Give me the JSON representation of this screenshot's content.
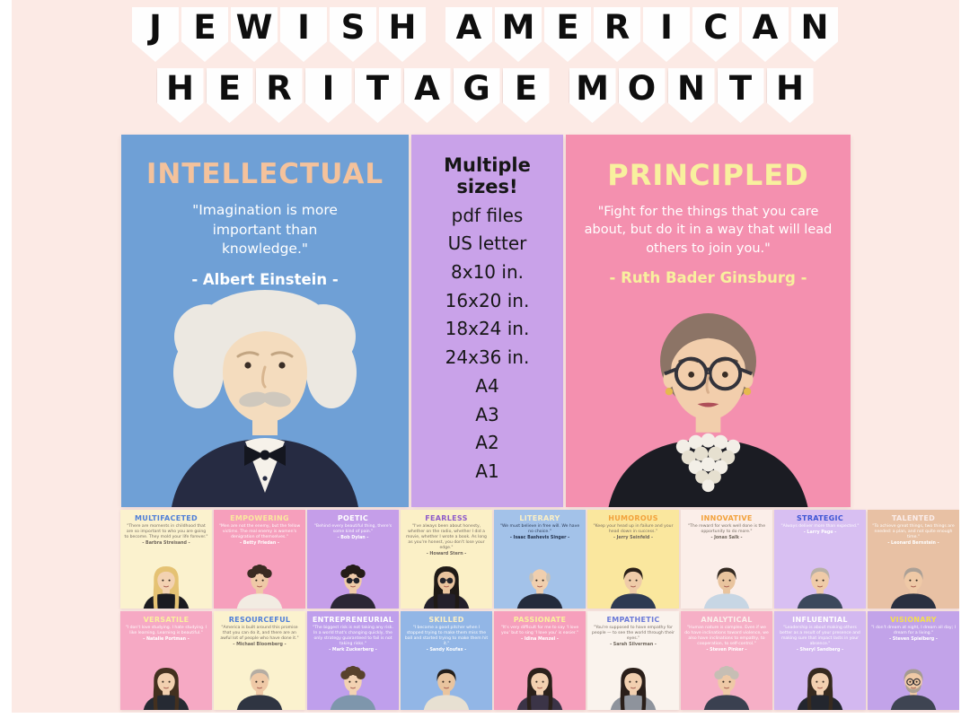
{
  "banner": {
    "line1": "JEWISH AMERICAN",
    "line2": "HERITAGE MONTH"
  },
  "featured": {
    "left": {
      "title": "INTELLECTUAL",
      "quote": "\"Imagination is more important than knowledge.\"",
      "author": "- Albert Einstein -"
    },
    "sizes": {
      "lines": [
        "Multiple sizes!",
        "pdf files",
        "US letter",
        "8x10 in.",
        "16x20 in.",
        "18x24 in.",
        "24x36 in.",
        "A4",
        "A3",
        "A2",
        "A1"
      ]
    },
    "right": {
      "title": "PRINCIPLED",
      "quote": "\"Fight for the things that you care about, but do it in a way that will lead others to join you.\"",
      "author": "- Ruth Bader Ginsburg -"
    }
  },
  "colors": {
    "background": "#FCEAE5",
    "left_poster": "#6FA0D6",
    "sizes_panel": "#C9A2E9",
    "right_poster": "#F490AF",
    "left_title": "#F4C29C",
    "right_title": "#F8F09E",
    "banner_letter": "#0E0E0E"
  },
  "mini_posters": {
    "rows": [
      [
        {
          "title": "MULTIFACETED",
          "title_color": "#4F7FD8",
          "bg": "#FBF2CE",
          "fg": "#6F665C",
          "quote": "\"There are moments in childhood that are so important to who you are going to become. They mold your life forever.\"",
          "name": "- Barbra Streisand -",
          "portrait": {
            "style": "long",
            "hair": "#E5C273",
            "skin": "#F3D2B2",
            "shirt": "#1B1B20"
          }
        },
        {
          "title": "EMPOWERING",
          "title_color": "#FAE89E",
          "bg": "#F69FBC",
          "fg": "#FFFFFF",
          "quote": "\"Men are not the enemy, but the fellow victims. The real enemy is women's denigration of themselves.\"",
          "name": "- Betty Friedan -",
          "portrait": {
            "style": "curly",
            "hair": "#3B2B22",
            "skin": "#EFC9A6",
            "shirt": "#F2ECE2"
          }
        },
        {
          "title": "POETIC",
          "title_color": "#FFFFFF",
          "bg": "#C59EE9",
          "fg": "#FFFFFF",
          "quote": "\"Behind every beautiful thing, there's some kind of pain.\"",
          "name": "- Bob Dylan -",
          "portrait": {
            "style": "curly",
            "hair": "#241C17",
            "skin": "#EFCBA8",
            "shirt": "#2B2735",
            "sunglasses": true
          }
        },
        {
          "title": "FEARLESS",
          "title_color": "#8E5BC9",
          "bg": "#FBF0C6",
          "fg": "#6F665C",
          "quote": "\"I've always been about honesty, whether on the radio, whether I did a movie, whether I wrote a book. As long as you're honest, you don't lose your edge.\"",
          "name": "- Howard Stern -",
          "portrait": {
            "style": "long",
            "hair": "#1F1A16",
            "skin": "#E9C49E",
            "shirt": "#23202B",
            "sunglasses": true
          }
        },
        {
          "title": "LITERARY",
          "title_color": "#FBF0C6",
          "bg": "#A3C2E9",
          "fg": "#23324D",
          "quote": "\"We must believe in free will. We have no choice.\"",
          "name": "- Isaac Bashevis Singer -",
          "portrait": {
            "style": "bald",
            "hair": "#C9C2B7",
            "skin": "#F0CFAE",
            "shirt": "#242B3C"
          }
        },
        {
          "title": "HUMOROUS",
          "title_color": "#F2A23C",
          "bg": "#FAE79E",
          "fg": "#6F665C",
          "quote": "\"Keep your head up in failure and your head down in success.\"",
          "name": "- Jerry Seinfeld -",
          "portrait": {
            "style": "short",
            "hair": "#2A2018",
            "skin": "#EFCBA8",
            "shirt": "#2E3A52"
          }
        },
        {
          "title": "INNOVATIVE",
          "title_color": "#F2A23C",
          "bg": "#FBEEE9",
          "fg": "#6F665C",
          "quote": "\"The reward for work well done is the opportunity to do more.\"",
          "name": "- Jonas Salk -",
          "portrait": {
            "style": "short",
            "hair": "#342A22",
            "skin": "#E9C49E",
            "shirt": "#C7D6E4"
          }
        },
        {
          "title": "STRATEGIC",
          "title_color": "#3D55D4",
          "bg": "#D8BFF2",
          "fg": "#FFFFFF",
          "quote": "\"Always deliver more than expected.\"",
          "name": "- Larry Page -",
          "portrait": {
            "style": "short",
            "hair": "#B9B1A6",
            "skin": "#EFCBA8",
            "shirt": "#3C485C"
          }
        },
        {
          "title": "TALENTED",
          "title_color": "#FBEDEA",
          "bg": "#E8C1A4",
          "fg": "#FFFFFF",
          "quote": "\"To achieve great things, two things are needed: a plan, and not quite enough time.\"",
          "name": "- Leonard Bernstein -",
          "portrait": {
            "style": "short",
            "hair": "#ABA096",
            "skin": "#EFC9A6",
            "shirt": "#2A3040"
          }
        }
      ],
      [
        {
          "title": "VERSATILE",
          "title_color": "#FAF09E",
          "bg": "#F6A9C4",
          "fg": "#FFFFFF",
          "quote": "\"I don't love studying. I hate studying. I like learning. Learning is beautiful.\"",
          "name": "- Natalie Portman -",
          "portrait": {
            "style": "long",
            "hair": "#43301F",
            "skin": "#F2D0B0",
            "shirt": "#262A33"
          }
        },
        {
          "title": "RESOURCEFUL",
          "title_color": "#4F7FD8",
          "bg": "#FBF2CE",
          "fg": "#6F665C",
          "quote": "\"America is built around this promise that you can do it, and there are an awful lot of people who have done it.\"",
          "name": "- Michael Bloomberg -",
          "portrait": {
            "style": "short",
            "hair": "#B5ADA3",
            "skin": "#EFC9A6",
            "shirt": "#2F3542"
          }
        },
        {
          "title": "ENTREPRENEURIAL",
          "title_color": "#FFFFFF",
          "bg": "#BF9FEC",
          "fg": "#FFFFFF",
          "quote": "\"The biggest risk is not taking any risk. In a world that's changing quickly, the only strategy guaranteed to fail is not taking risks.\"",
          "name": "- Mark Zuckerberg -",
          "portrait": {
            "style": "curly",
            "hair": "#58422C",
            "skin": "#F3D2B2",
            "shirt": "#7E96AC"
          }
        },
        {
          "title": "SKILLED",
          "title_color": "#FBF0C6",
          "bg": "#92B6E6",
          "fg": "#FFFFFF",
          "quote": "\"I became a good pitcher when I stopped trying to make them miss the ball and started trying to make them hit it.\"",
          "name": "- Sandy Koufax -",
          "portrait": {
            "style": "short",
            "hair": "#241E19",
            "skin": "#E9C49E",
            "shirt": "#E7E0D2"
          }
        },
        {
          "title": "PASSIONATE",
          "title_color": "#FAF09E",
          "bg": "#F69FBC",
          "fg": "#FFFFFF",
          "quote": "\"It's very difficult for me to say 'I love you' but to sing 'I love you' is easier.\"",
          "name": "- Idina Menzel -",
          "portrait": {
            "style": "long",
            "hair": "#2B211B",
            "skin": "#F2D0B0",
            "shirt": "#3B3447"
          }
        },
        {
          "title": "EMPATHETIC",
          "title_color": "#6B7AD8",
          "bg": "#FAF3ED",
          "fg": "#6F665C",
          "quote": "\"You're supposed to have empathy for people — to see the world through their eyes.\"",
          "name": "- Sarah Silverman -",
          "portrait": {
            "style": "long",
            "hair": "#2A1F1A",
            "skin": "#F2D0B0",
            "shirt": "#8E939C"
          }
        },
        {
          "title": "ANALYTICAL",
          "title_color": "#FBEDEA",
          "bg": "#F6AFC6",
          "fg": "#FFFFFF",
          "quote": "\"Human nature is complex. Even if we do have inclinations toward violence, we also have inclinations to empathy, to cooperation, to self-control.\"",
          "name": "- Steven Pinker -",
          "portrait": {
            "style": "curly",
            "hair": "#C6BEB4",
            "skin": "#EFC9A6",
            "shirt": "#3A4050"
          }
        },
        {
          "title": "INFLUENTIAL",
          "title_color": "#FFFFFF",
          "bg": "#D3B8F0",
          "fg": "#FFFFFF",
          "quote": "\"Leadership is about making others better as a result of your presence and making sure that impact lasts in your absence.\"",
          "name": "- Sheryl Sandberg -",
          "portrait": {
            "style": "long",
            "hair": "#362A1F",
            "skin": "#F2D0B0",
            "shirt": "#23262E"
          }
        },
        {
          "title": "VISIONARY",
          "title_color": "#F4DF4E",
          "bg": "#C2A3E9",
          "fg": "#FFFFFF",
          "quote": "\"I don't dream at night, I dream all day; I dream for a living.\"",
          "name": "- Steven Spielberg -",
          "portrait": {
            "style": "short",
            "hair": "#A59B90",
            "skin": "#EFC9A6",
            "shirt": "#3E4452",
            "glasses": true,
            "beard": true
          }
        }
      ]
    ]
  }
}
